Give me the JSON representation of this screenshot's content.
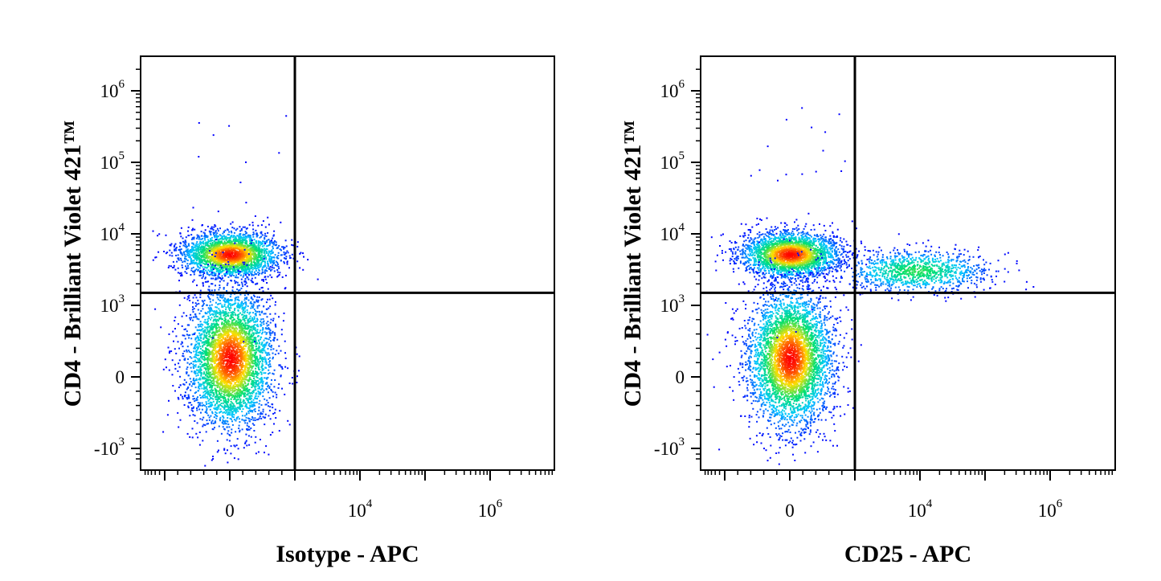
{
  "chart_data": [
    {
      "type": "scatter",
      "subtype": "flow-cytometry-density-plot",
      "xlabel": "Isotype - APC",
      "ylabel": "CD4 - Brilliant Violet 421™",
      "x_scale": "biexponential",
      "y_scale": "biexponential",
      "x_ticks": [
        {
          "value": 0,
          "base": "0",
          "exp": ""
        },
        {
          "value": 10000,
          "base": "10",
          "exp": "4"
        },
        {
          "value": 1000000,
          "base": "10",
          "exp": "6"
        }
      ],
      "y_ticks": [
        {
          "value": 1000000,
          "base": "10",
          "exp": "6"
        },
        {
          "value": 100000,
          "base": "10",
          "exp": "5"
        },
        {
          "value": 10000,
          "base": "10",
          "exp": "4"
        },
        {
          "value": 1000,
          "base": "10",
          "exp": "3"
        },
        {
          "value": 0,
          "base": "0",
          "exp": ""
        },
        {
          "value": -1000,
          "base": "-10",
          "exp": "3"
        }
      ],
      "quadrant_gate": {
        "x": 1000,
        "y": 1500
      },
      "populations": [
        {
          "x_center": 0,
          "y_center": 5500
        },
        {
          "x_center": 0,
          "y_center": 150
        }
      ],
      "density_colors": [
        "#0000ff",
        "#00c8ff",
        "#00e070",
        "#ffe000",
        "#ff0000"
      ]
    },
    {
      "type": "scatter",
      "subtype": "flow-cytometry-density-plot",
      "xlabel": "CD25 - APC",
      "ylabel": "CD4 - Brilliant Violet 421™",
      "x_scale": "biexponential",
      "y_scale": "biexponential",
      "x_ticks": [
        {
          "value": 0,
          "base": "0",
          "exp": ""
        },
        {
          "value": 10000,
          "base": "10",
          "exp": "4"
        },
        {
          "value": 1000000,
          "base": "10",
          "exp": "6"
        }
      ],
      "y_ticks": [
        {
          "value": 1000000,
          "base": "10",
          "exp": "6"
        },
        {
          "value": 100000,
          "base": "10",
          "exp": "5"
        },
        {
          "value": 10000,
          "base": "10",
          "exp": "4"
        },
        {
          "value": 1000,
          "base": "10",
          "exp": "3"
        },
        {
          "value": 0,
          "base": "0",
          "exp": ""
        },
        {
          "value": -1000,
          "base": "-10",
          "exp": "3"
        }
      ],
      "quadrant_gate": {
        "x": 1000,
        "y": 1500
      },
      "populations": [
        {
          "x_center": 0,
          "y_center": 5500
        },
        {
          "x_center": 0,
          "y_center": 150
        },
        {
          "x_center": 8000,
          "y_center": 4000
        }
      ],
      "density_colors": [
        "#0000ff",
        "#00c8ff",
        "#00e070",
        "#ffe000",
        "#ff0000"
      ]
    }
  ]
}
